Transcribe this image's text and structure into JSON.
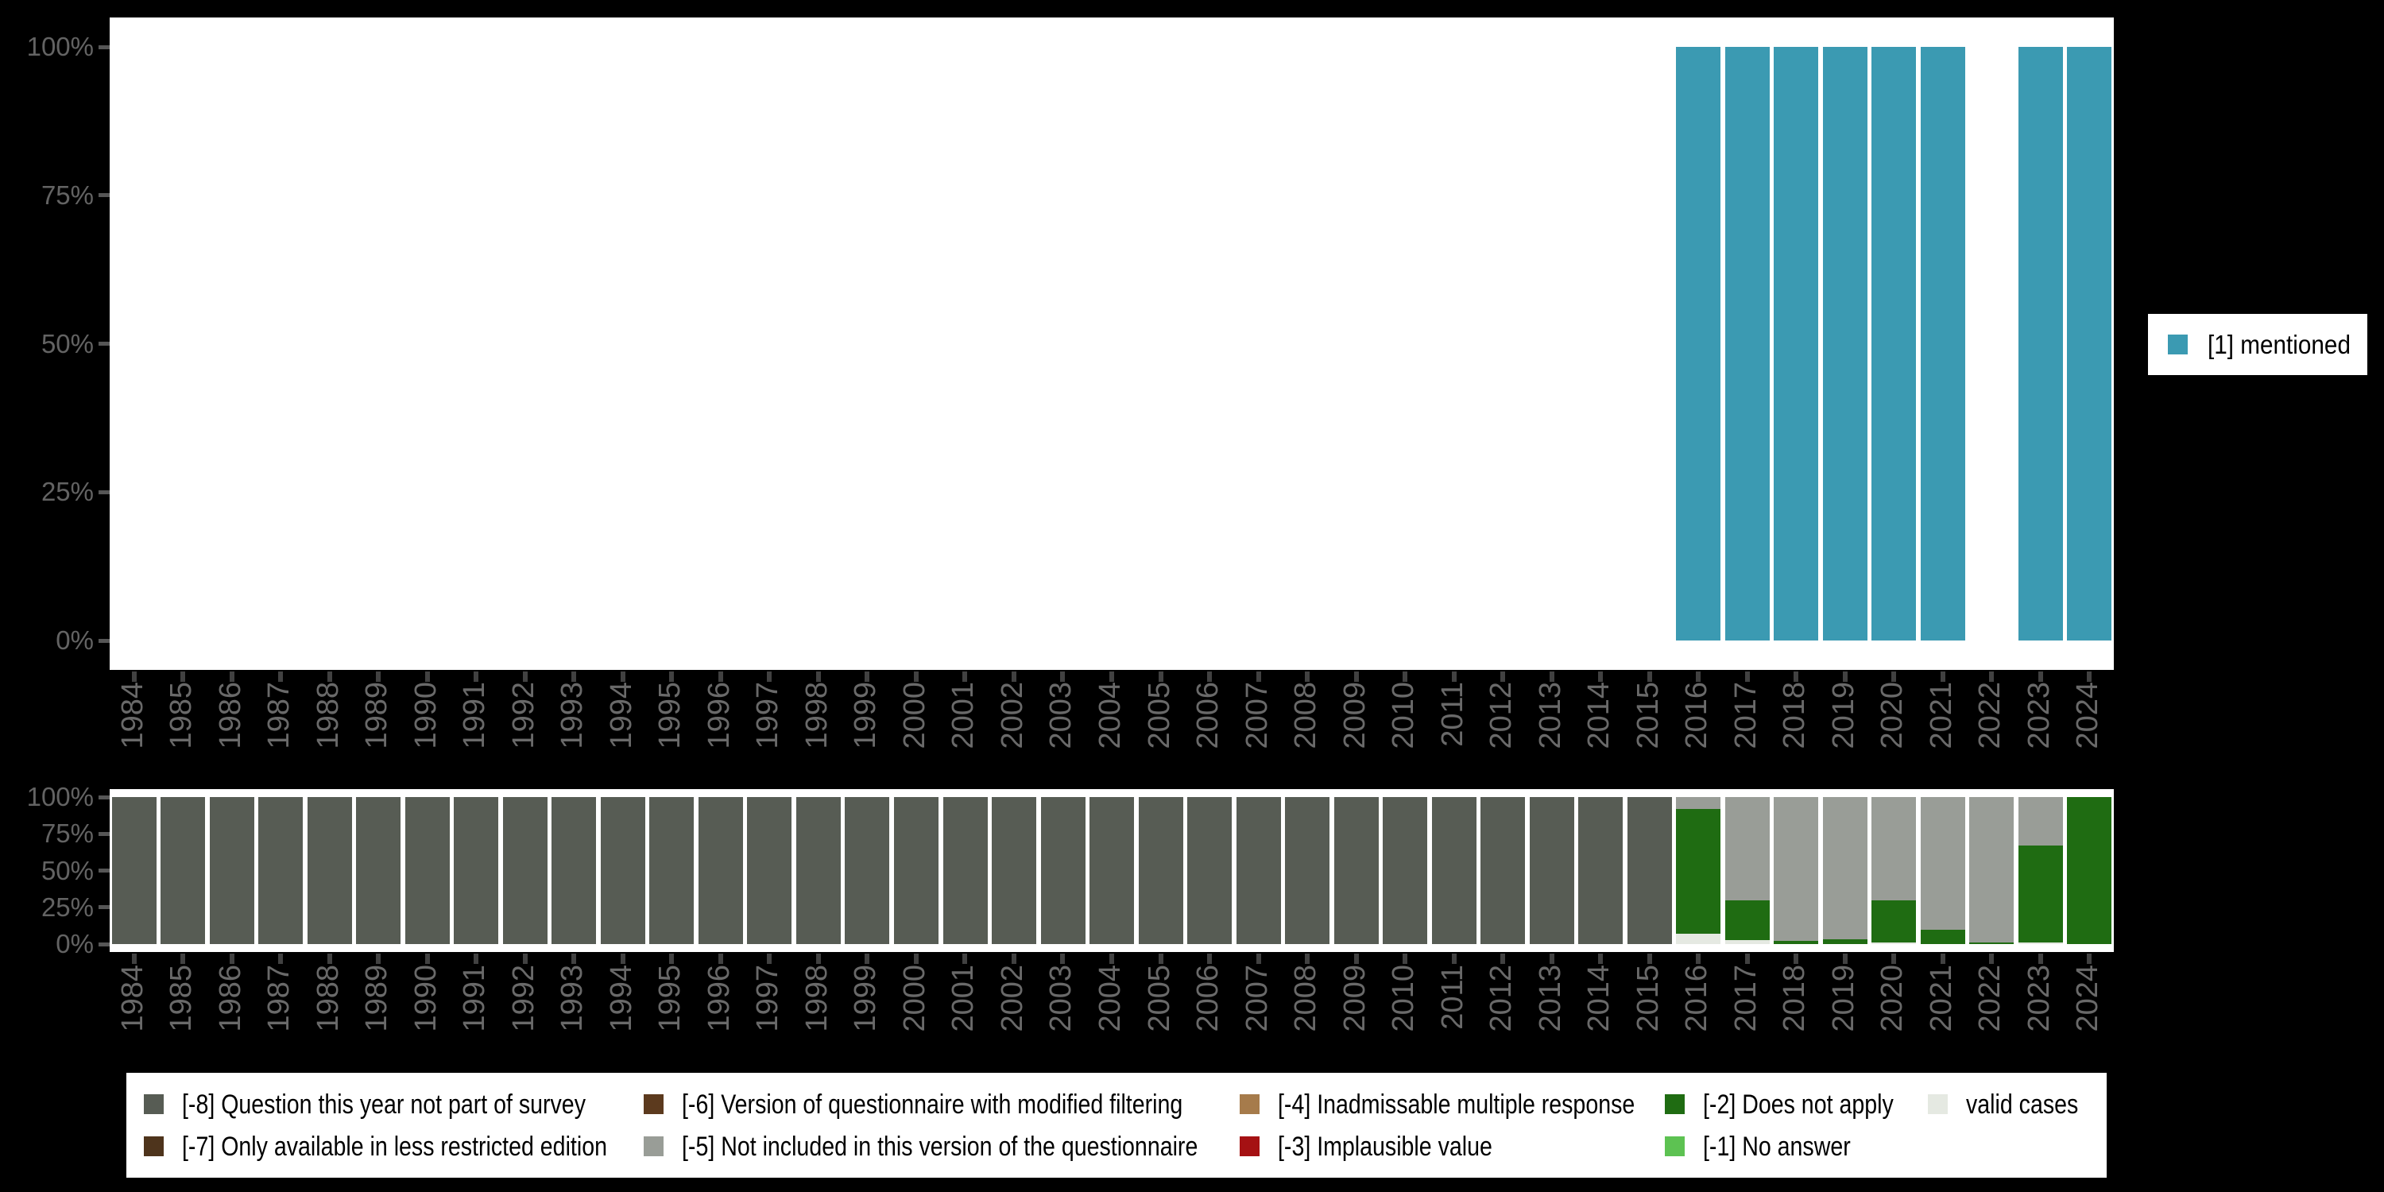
{
  "chart_data": [
    {
      "id": "valid-values-chart",
      "type": "bar",
      "stacked": true,
      "grid": false,
      "legend_position": "right",
      "ylim": [
        0,
        100
      ],
      "y_ticks": [
        {
          "v": 100,
          "label": "100%"
        },
        {
          "v": 75,
          "label": "75%"
        },
        {
          "v": 50,
          "label": "50%"
        },
        {
          "v": 25,
          "label": "25%"
        },
        {
          "v": 0,
          "label": "0%"
        }
      ],
      "categories": [
        "1984",
        "1985",
        "1986",
        "1987",
        "1988",
        "1989",
        "1990",
        "1991",
        "1992",
        "1993",
        "1994",
        "1995",
        "1996",
        "1997",
        "1998",
        "1999",
        "2000",
        "2001",
        "2002",
        "2003",
        "2004",
        "2005",
        "2006",
        "2007",
        "2008",
        "2009",
        "2010",
        "2011",
        "2012",
        "2013",
        "2014",
        "2015",
        "2016",
        "2017",
        "2018",
        "2019",
        "2020",
        "2021",
        "2022",
        "2023",
        "2024"
      ],
      "series": [
        {
          "name": "[1] mentioned",
          "color": "#3B9AB2",
          "values": [
            0,
            0,
            0,
            0,
            0,
            0,
            0,
            0,
            0,
            0,
            0,
            0,
            0,
            0,
            0,
            0,
            0,
            0,
            0,
            0,
            0,
            0,
            0,
            0,
            0,
            0,
            0,
            0,
            0,
            0,
            0,
            0,
            100,
            100,
            100,
            100,
            100,
            100,
            0,
            100,
            100
          ]
        }
      ]
    },
    {
      "id": "missing-values-chart",
      "type": "bar",
      "stacked": true,
      "grid": false,
      "legend_position": "bottom",
      "ylim": [
        0,
        100
      ],
      "y_ticks": [
        {
          "v": 100,
          "label": "100%"
        },
        {
          "v": 75,
          "label": "75%"
        },
        {
          "v": 50,
          "label": "50%"
        },
        {
          "v": 25,
          "label": "25%"
        },
        {
          "v": 0,
          "label": "0%"
        }
      ],
      "categories": [
        "1984",
        "1985",
        "1986",
        "1987",
        "1988",
        "1989",
        "1990",
        "1991",
        "1992",
        "1993",
        "1994",
        "1995",
        "1996",
        "1997",
        "1998",
        "1999",
        "2000",
        "2001",
        "2002",
        "2003",
        "2004",
        "2005",
        "2006",
        "2007",
        "2008",
        "2009",
        "2010",
        "2011",
        "2012",
        "2013",
        "2014",
        "2015",
        "2016",
        "2017",
        "2018",
        "2019",
        "2020",
        "2021",
        "2022",
        "2023",
        "2024"
      ],
      "series": [
        {
          "name": "[-8] Question this year not part of survey",
          "color": "#575C54",
          "values": [
            100,
            100,
            100,
            100,
            100,
            100,
            100,
            100,
            100,
            100,
            100,
            100,
            100,
            100,
            100,
            100,
            100,
            100,
            100,
            100,
            100,
            100,
            100,
            100,
            100,
            100,
            100,
            100,
            100,
            100,
            100,
            100,
            0,
            0,
            0,
            0,
            0,
            0,
            0,
            0,
            0
          ]
        },
        {
          "name": "[-7] Only available in less restricted edition",
          "color": "#4E341C",
          "values": [
            0,
            0,
            0,
            0,
            0,
            0,
            0,
            0,
            0,
            0,
            0,
            0,
            0,
            0,
            0,
            0,
            0,
            0,
            0,
            0,
            0,
            0,
            0,
            0,
            0,
            0,
            0,
            0,
            0,
            0,
            0,
            0,
            0,
            0,
            0,
            0,
            0,
            0,
            0,
            0,
            0
          ]
        },
        {
          "name": "[-6] Version of questionnaire with modified filtering",
          "color": "#5C3A1E",
          "values": [
            0,
            0,
            0,
            0,
            0,
            0,
            0,
            0,
            0,
            0,
            0,
            0,
            0,
            0,
            0,
            0,
            0,
            0,
            0,
            0,
            0,
            0,
            0,
            0,
            0,
            0,
            0,
            0,
            0,
            0,
            0,
            0,
            0,
            0,
            0,
            0,
            0,
            0,
            0,
            0,
            0
          ]
        },
        {
          "name": "[-5] Not included in this version of the questionnaire",
          "color": "#999D97",
          "values": [
            0,
            0,
            0,
            0,
            0,
            0,
            0,
            0,
            0,
            0,
            0,
            0,
            0,
            0,
            0,
            0,
            0,
            0,
            0,
            0,
            0,
            0,
            0,
            0,
            0,
            0,
            0,
            0,
            0,
            0,
            0,
            0,
            8,
            70,
            98,
            97,
            70,
            90,
            99,
            33,
            0
          ]
        },
        {
          "name": "[-4] Inadmissable multiple response",
          "color": "#A67B4B",
          "values": [
            0,
            0,
            0,
            0,
            0,
            0,
            0,
            0,
            0,
            0,
            0,
            0,
            0,
            0,
            0,
            0,
            0,
            0,
            0,
            0,
            0,
            0,
            0,
            0,
            0,
            0,
            0,
            0,
            0,
            0,
            0,
            0,
            0,
            0,
            0,
            0,
            0,
            0,
            0,
            0,
            0
          ]
        },
        {
          "name": "[-3] Implausible value",
          "color": "#A51113",
          "values": [
            0,
            0,
            0,
            0,
            0,
            0,
            0,
            0,
            0,
            0,
            0,
            0,
            0,
            0,
            0,
            0,
            0,
            0,
            0,
            0,
            0,
            0,
            0,
            0,
            0,
            0,
            0,
            0,
            0,
            0,
            0,
            0,
            0,
            0,
            0,
            0,
            0,
            0,
            0,
            0,
            0
          ]
        },
        {
          "name": "[-2] Does not apply",
          "color": "#1F6C12",
          "values": [
            0,
            0,
            0,
            0,
            0,
            0,
            0,
            0,
            0,
            0,
            0,
            0,
            0,
            0,
            0,
            0,
            0,
            0,
            0,
            0,
            0,
            0,
            0,
            0,
            0,
            0,
            0,
            0,
            0,
            0,
            0,
            0,
            85,
            27,
            2,
            3,
            29,
            10,
            1,
            66,
            100
          ]
        },
        {
          "name": "[-1] No answer",
          "color": "#5DC252",
          "values": [
            0,
            0,
            0,
            0,
            0,
            0,
            0,
            0,
            0,
            0,
            0,
            0,
            0,
            0,
            0,
            0,
            0,
            0,
            0,
            0,
            0,
            0,
            0,
            0,
            0,
            0,
            0,
            0,
            0,
            0,
            0,
            0,
            0,
            0,
            0,
            0,
            0,
            0,
            0,
            0,
            0
          ]
        },
        {
          "name": "valid cases",
          "color": "#E5E9E2",
          "values": [
            0,
            0,
            0,
            0,
            0,
            0,
            0,
            0,
            0,
            0,
            0,
            0,
            0,
            0,
            0,
            0,
            0,
            0,
            0,
            0,
            0,
            0,
            0,
            0,
            0,
            0,
            0,
            0,
            0,
            0,
            0,
            0,
            7,
            3,
            0,
            0,
            1,
            0,
            0,
            1,
            0
          ]
        }
      ],
      "legend_columns": [
        [
          "[-8] Question this year not part of survey",
          "[-7] Only available in less restricted edition"
        ],
        [
          "[-6] Version of questionnaire with modified filtering",
          "[-5] Not included in this version of the questionnaire"
        ],
        [
          "[-4] Inadmissable multiple response",
          "[-3] Implausible value"
        ],
        [
          "[-2] Does not apply",
          "[-1] No answer"
        ],
        [
          "valid cases"
        ]
      ]
    }
  ]
}
